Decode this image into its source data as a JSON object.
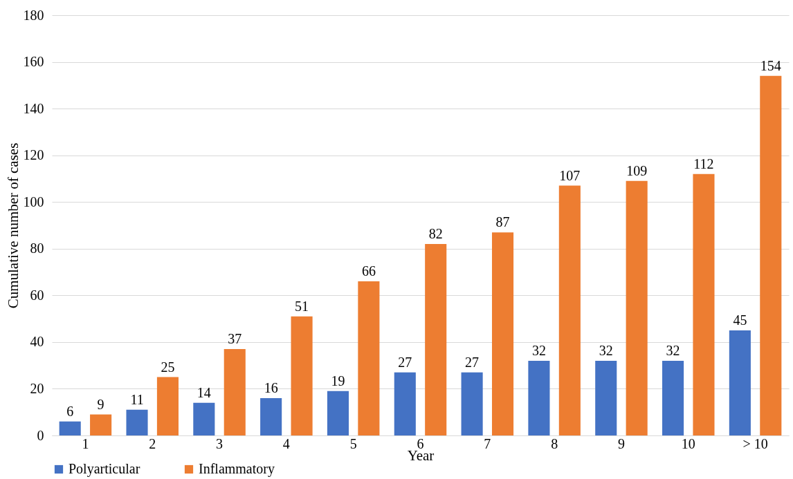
{
  "chart_data": {
    "type": "bar",
    "xlabel": "Year",
    "ylabel": "Cumulative number of cases",
    "categories": [
      "1",
      "2",
      "3",
      "4",
      "5",
      "6",
      "7",
      "8",
      "9",
      "10",
      "> 10"
    ],
    "series": [
      {
        "name": "Polyarticular",
        "color": "#4472c4",
        "values": [
          6,
          11,
          14,
          16,
          19,
          27,
          27,
          32,
          32,
          32,
          45
        ]
      },
      {
        "name": "Inflammatory",
        "color": "#ed7d31",
        "values": [
          9,
          25,
          37,
          51,
          66,
          82,
          87,
          107,
          109,
          112,
          154
        ]
      }
    ],
    "ylim": [
      0,
      180
    ],
    "yticks": [
      0,
      20,
      40,
      60,
      80,
      100,
      120,
      140,
      160,
      180
    ],
    "grid": "y",
    "legend": "bottom",
    "data_labels": true
  }
}
